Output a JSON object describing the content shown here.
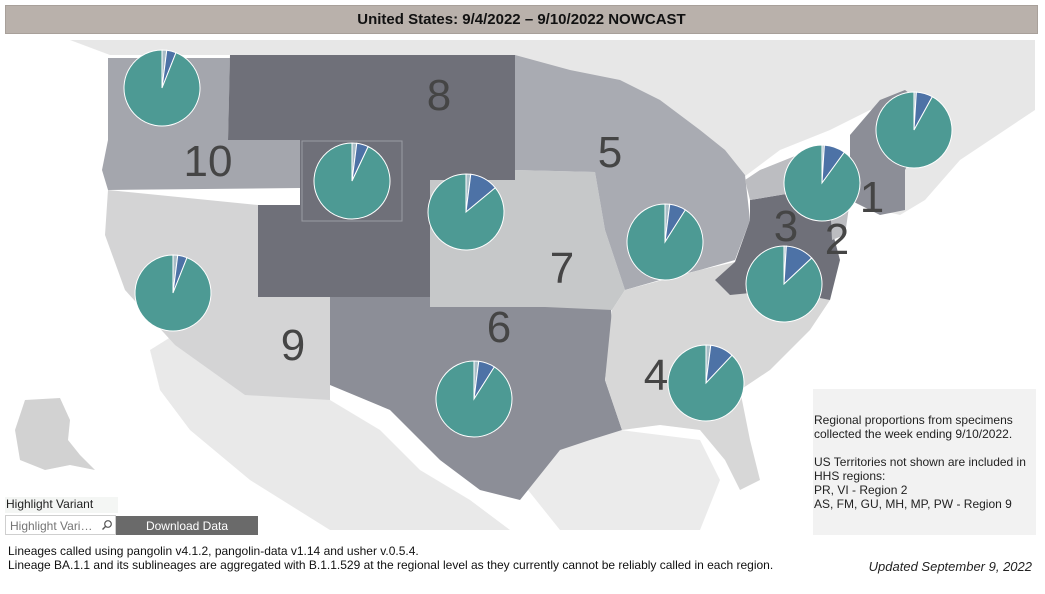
{
  "title": "United States: 9/4/2022 – 9/10/2022 NOWCAST",
  "colors": {
    "region_dark": "#6f7079",
    "region_mid": "#8c8e97",
    "region_light": "#a9abb2",
    "region_pale": "#c6c8c9",
    "region_lightest": "#d7d7d7",
    "background_land": "#e7e7e7",
    "pie_main": "#4d9a94",
    "pie_secondary": "#4d72a6",
    "pie_minor": "#a8bdc7"
  },
  "regions": [
    {
      "label": "1",
      "pie": [
        92,
        7,
        1
      ]
    },
    {
      "label": "2",
      "pie": [
        87,
        12,
        1
      ]
    },
    {
      "label": "3",
      "pie": [
        90,
        9,
        1
      ]
    },
    {
      "label": "4",
      "pie": [
        88,
        10,
        2
      ]
    },
    {
      "label": "5",
      "pie": [
        91,
        7,
        2
      ]
    },
    {
      "label": "6",
      "pie": [
        91,
        7,
        2
      ]
    },
    {
      "label": "7",
      "pie": [
        86,
        12,
        2
      ]
    },
    {
      "label": "8",
      "pie": [
        93,
        5,
        2
      ]
    },
    {
      "label": "9",
      "pie": [
        94,
        4,
        2
      ]
    },
    {
      "label": "10",
      "pie": [
        94,
        4,
        2
      ]
    }
  ],
  "note": {
    "line1": "Regional proportions from specimens",
    "line2": "collected the week ending 9/10/2022.",
    "line3": "US Territories not shown are included in",
    "line4": "HHS regions:",
    "line5": "PR, VI - Region 2",
    "line6": "AS, FM, GU, MH, MP, PW - Region 9"
  },
  "highlight": {
    "label": "Highlight Variant",
    "placeholder": "Highlight Vari…",
    "icon": "search-icon"
  },
  "download_label": "Download Data",
  "footer": {
    "line1": "Lineages called using pangolin v4.1.2, pangolin-data v1.14 and usher v.0.5.4.",
    "line2": "Lineage BA.1.1 and its sublineages are aggregated with B.1.1.529 at the regional level as they currently cannot be reliably called in each region."
  },
  "updated": "Updated September 9, 2022"
}
